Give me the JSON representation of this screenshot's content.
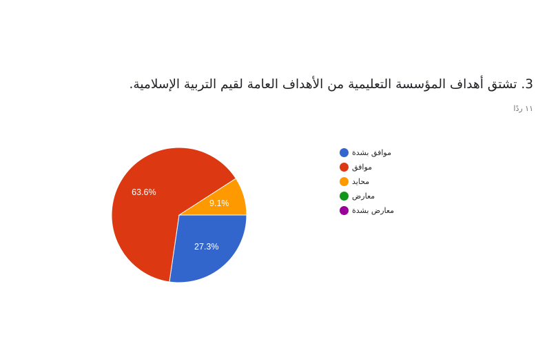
{
  "question": {
    "title": "3. تشتق أهداف المؤسسة التعليمية من الأهداف العامة لقيم التربية الإسلامية.",
    "response_count": "١١ ردًا"
  },
  "chart_data": {
    "type": "pie",
    "title": "",
    "categories": [
      "موافق بشدة",
      "موافق",
      "محايد",
      "معارض",
      "معارض بشدة"
    ],
    "values": [
      27.3,
      63.6,
      9.1,
      0,
      0
    ],
    "value_labels": [
      "27.3%",
      "63.6%",
      "9.1%",
      "",
      ""
    ],
    "colors": [
      "#3366cc",
      "#dc3912",
      "#ff9900",
      "#109618",
      "#990099"
    ],
    "start": "3 o'clock",
    "direction": "clockwise",
    "legend": "right"
  }
}
